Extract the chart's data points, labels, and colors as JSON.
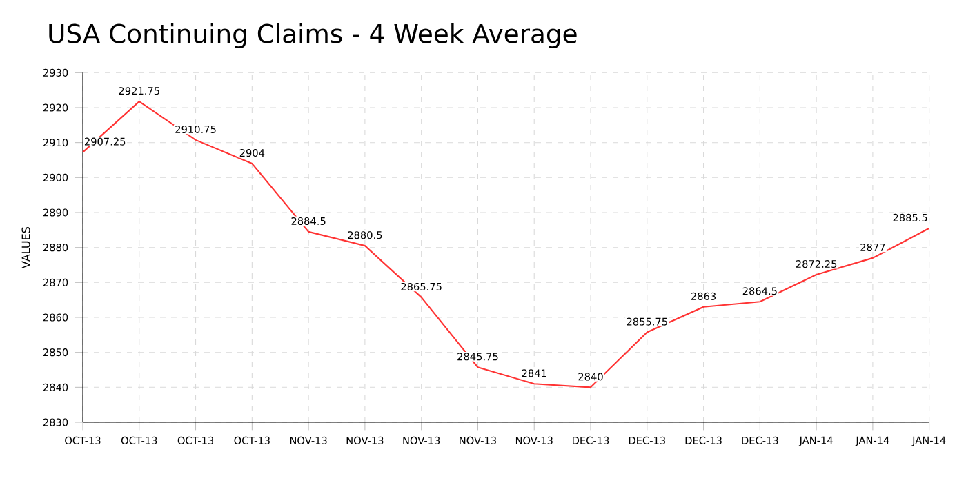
{
  "chart_data": {
    "type": "line",
    "title": "USA Continuing Claims - 4 Week Average",
    "ylabel": "VALUES",
    "categories": [
      "OCT-13",
      "OCT-13",
      "OCT-13",
      "OCT-13",
      "NOV-13",
      "NOV-13",
      "NOV-13",
      "NOV-13",
      "NOV-13",
      "DEC-13",
      "DEC-13",
      "DEC-13",
      "DEC-13",
      "JAN-14",
      "JAN-14",
      "JAN-14"
    ],
    "series": [
      {
        "color": "#ff3333",
        "values": [
          2907.25,
          2921.75,
          2910.75,
          2904,
          2884.5,
          2880.5,
          2865.75,
          2845.75,
          2841,
          2840,
          2855.75,
          2863,
          2864.5,
          2872.25,
          2877,
          2885.5
        ]
      }
    ],
    "ylim": [
      2830,
      2930
    ],
    "yticks": [
      2830,
      2840,
      2850,
      2860,
      2870,
      2880,
      2890,
      2900,
      2910,
      2920,
      2930
    ],
    "grid": true,
    "data_labels": true,
    "marker": "none",
    "line_style": "solid"
  }
}
